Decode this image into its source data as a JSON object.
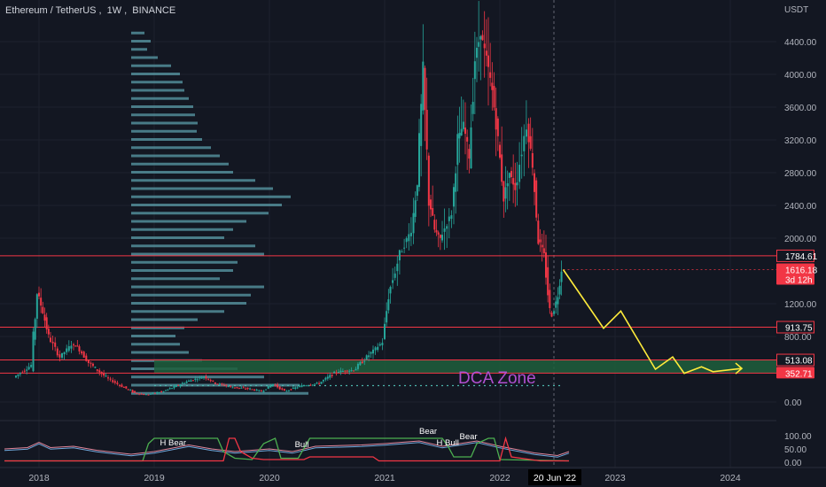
{
  "header": {
    "symbol": "Ethereum / TetherUS",
    "interval": "1W",
    "exchange": "BINANCE"
  },
  "price_axis": {
    "unit": "USDT",
    "ticks": [
      "4400.00",
      "4000.00",
      "3600.00",
      "3200.00",
      "2800.00",
      "2400.00",
      "2000.00",
      "1200.00",
      "800.00",
      "0.00"
    ],
    "tick_values": [
      4400,
      4000,
      3600,
      3200,
      2800,
      2400,
      2000,
      1200,
      800,
      0
    ],
    "badges": [
      {
        "label": "1784.61",
        "value": 1784.61,
        "color": "#f23645",
        "style": "outline"
      },
      {
        "label": "1616.18",
        "value": 1616.18,
        "color": "#f23645",
        "style": "filled",
        "sub": "3d 12h"
      },
      {
        "label": "913.75",
        "value": 913.75,
        "color": "#f23645",
        "style": "outline"
      },
      {
        "label": "513.08",
        "value": 513.08,
        "color": "#f23645",
        "style": "outline"
      },
      {
        "label": "352.71",
        "value": 352.71,
        "color": "#f23645",
        "style": "filled"
      }
    ]
  },
  "osc_axis": {
    "ticks": [
      "100.00",
      "50.00",
      "0.00"
    ],
    "tick_values": [
      100,
      50,
      0
    ]
  },
  "time_axis": {
    "labels": [
      "2018",
      "2019",
      "2020",
      "2021",
      "2022",
      "2023",
      "2024"
    ],
    "cursor_label": "20 Jun '22"
  },
  "annotations": {
    "zone_label": "DCA Zone",
    "osc_labels": [
      "H Bear",
      "Bull",
      "Bear",
      "H Bull",
      "Bear"
    ]
  },
  "colors": {
    "background": "#131722",
    "up": "#26a69a",
    "down": "#f23645",
    "level_line": "#f23645",
    "projection": "#ffeb3b",
    "zone_fill": "#1e5f3c",
    "zone_text": "#b04fd0",
    "volume_profile": "#5b9ea9",
    "osc_green": "#4caf50",
    "osc_red": "#f23645",
    "osc_pink": "#e0859a",
    "osc_blue": "#6fa8dc"
  },
  "chart_data": {
    "type": "candlestick",
    "series_name": "Ethereum / TetherUS, 1W, BINANCE",
    "x_unit": "year",
    "y_unit": "USDT",
    "ylim": [
      -150,
      4750
    ],
    "price_points": [
      [
        2017.8,
        300
      ],
      [
        2017.95,
        450
      ],
      [
        2018.0,
        1350
      ],
      [
        2018.05,
        1100
      ],
      [
        2018.1,
        800
      ],
      [
        2018.2,
        550
      ],
      [
        2018.3,
        700
      ],
      [
        2018.35,
        680
      ],
      [
        2018.45,
        480
      ],
      [
        2018.6,
        300
      ],
      [
        2018.7,
        220
      ],
      [
        2018.85,
        110
      ],
      [
        2018.95,
        90
      ],
      [
        2019.1,
        130
      ],
      [
        2019.3,
        250
      ],
      [
        2019.45,
        310
      ],
      [
        2019.55,
        230
      ],
      [
        2019.7,
        180
      ],
      [
        2019.85,
        160
      ],
      [
        2019.95,
        130
      ],
      [
        2020.05,
        220
      ],
      [
        2020.15,
        130
      ],
      [
        2020.3,
        200
      ],
      [
        2020.45,
        230
      ],
      [
        2020.6,
        370
      ],
      [
        2020.75,
        390
      ],
      [
        2020.9,
        600
      ],
      [
        2021.0,
        730
      ],
      [
        2021.05,
        1300
      ],
      [
        2021.15,
        1800
      ],
      [
        2021.25,
        2100
      ],
      [
        2021.3,
        2700
      ],
      [
        2021.35,
        4000
      ],
      [
        2021.4,
        2500
      ],
      [
        2021.45,
        2100
      ],
      [
        2021.5,
        2000
      ],
      [
        2021.6,
        2300
      ],
      [
        2021.65,
        3200
      ],
      [
        2021.7,
        3400
      ],
      [
        2021.75,
        3000
      ],
      [
        2021.8,
        4200
      ],
      [
        2021.85,
        4500
      ],
      [
        2021.9,
        4200
      ],
      [
        2021.95,
        3800
      ],
      [
        2022.0,
        3200
      ],
      [
        2022.05,
        2500
      ],
      [
        2022.1,
        2800
      ],
      [
        2022.15,
        2600
      ],
      [
        2022.25,
        3400
      ],
      [
        2022.3,
        2900
      ],
      [
        2022.35,
        2000
      ],
      [
        2022.4,
        1800
      ],
      [
        2022.45,
        1100
      ],
      [
        2022.47,
        1050
      ],
      [
        2022.52,
        1300
      ],
      [
        2022.55,
        1616.18
      ]
    ],
    "horizontal_levels": [
      1784.61,
      913.75,
      513.08,
      352.71
    ],
    "dotted_level": 200,
    "dca_zone": {
      "from": 352.71,
      "to": 513.08
    },
    "projection_path": [
      [
        2022.55,
        1616.18
      ],
      [
        2022.9,
        900
      ],
      [
        2023.05,
        1110
      ],
      [
        2023.35,
        400
      ],
      [
        2023.5,
        550
      ],
      [
        2023.6,
        350
      ],
      [
        2023.75,
        430
      ],
      [
        2023.85,
        370
      ],
      [
        2024.1,
        410
      ]
    ],
    "volume_profile": {
      "anchor_x": 2018.8,
      "bins": [
        [
          4500,
          0.15
        ],
        [
          4400,
          0.22
        ],
        [
          4300,
          0.18
        ],
        [
          4200,
          0.3
        ],
        [
          4100,
          0.45
        ],
        [
          4000,
          0.55
        ],
        [
          3900,
          0.58
        ],
        [
          3800,
          0.6
        ],
        [
          3700,
          0.65
        ],
        [
          3600,
          0.7
        ],
        [
          3500,
          0.72
        ],
        [
          3400,
          0.75
        ],
        [
          3300,
          0.74
        ],
        [
          3200,
          0.8
        ],
        [
          3100,
          0.9
        ],
        [
          3000,
          1.0
        ],
        [
          2900,
          1.1
        ],
        [
          2800,
          1.15
        ],
        [
          2700,
          1.4
        ],
        [
          2600,
          1.6
        ],
        [
          2500,
          1.8
        ],
        [
          2400,
          1.7
        ],
        [
          2300,
          1.55
        ],
        [
          2200,
          1.3
        ],
        [
          2100,
          1.15
        ],
        [
          2000,
          1.05
        ],
        [
          1900,
          1.4
        ],
        [
          1800,
          1.5
        ],
        [
          1700,
          1.2
        ],
        [
          1600,
          1.15
        ],
        [
          1500,
          1.0
        ],
        [
          1400,
          1.5
        ],
        [
          1300,
          1.35
        ],
        [
          1200,
          1.3
        ],
        [
          1100,
          1.05
        ],
        [
          1000,
          0.75
        ],
        [
          900,
          0.6
        ],
        [
          800,
          0.5
        ],
        [
          700,
          0.55
        ],
        [
          600,
          0.65
        ],
        [
          500,
          0.8
        ],
        [
          400,
          1.2
        ],
        [
          300,
          1.5
        ],
        [
          200,
          1.9
        ],
        [
          100,
          2.0
        ]
      ]
    },
    "oscillator": {
      "ylim": [
        0,
        110
      ],
      "green_line": [
        [
          2017.7,
          5
        ],
        [
          2018.9,
          5
        ],
        [
          2018.95,
          70
        ],
        [
          2019.0,
          90
        ],
        [
          2019.55,
          90
        ],
        [
          2019.6,
          40
        ],
        [
          2019.7,
          15
        ],
        [
          2019.85,
          10
        ],
        [
          2019.95,
          70
        ],
        [
          2020.05,
          90
        ],
        [
          2020.1,
          15
        ],
        [
          2020.25,
          15
        ],
        [
          2020.35,
          90
        ],
        [
          2021.5,
          90
        ],
        [
          2021.55,
          60
        ],
        [
          2021.6,
          20
        ],
        [
          2021.75,
          20
        ],
        [
          2021.8,
          70
        ],
        [
          2021.9,
          90
        ],
        [
          2021.95,
          90
        ],
        [
          2022.0,
          10
        ],
        [
          2022.6,
          5
        ]
      ],
      "red_line": [
        [
          2017.7,
          5
        ],
        [
          2019.6,
          5
        ],
        [
          2019.65,
          90
        ],
        [
          2019.7,
          90
        ],
        [
          2019.75,
          40
        ],
        [
          2019.85,
          15
        ],
        [
          2019.95,
          10
        ],
        [
          2020.3,
          10
        ],
        [
          2020.35,
          20
        ],
        [
          2020.9,
          20
        ],
        [
          2020.95,
          5
        ],
        [
          2022.0,
          5
        ],
        [
          2022.05,
          90
        ],
        [
          2022.1,
          20
        ],
        [
          2022.35,
          5
        ],
        [
          2022.6,
          5
        ]
      ],
      "rsi_line": [
        [
          2017.7,
          50
        ],
        [
          2017.9,
          55
        ],
        [
          2018.0,
          75
        ],
        [
          2018.1,
          55
        ],
        [
          2018.3,
          60
        ],
        [
          2018.5,
          45
        ],
        [
          2018.8,
          30
        ],
        [
          2019.0,
          40
        ],
        [
          2019.3,
          65
        ],
        [
          2019.5,
          50
        ],
        [
          2019.7,
          40
        ],
        [
          2020.0,
          50
        ],
        [
          2020.2,
          40
        ],
        [
          2020.4,
          60
        ],
        [
          2020.8,
          65
        ],
        [
          2021.0,
          70
        ],
        [
          2021.3,
          80
        ],
        [
          2021.5,
          60
        ],
        [
          2021.8,
          80
        ],
        [
          2022.0,
          60
        ],
        [
          2022.3,
          35
        ],
        [
          2022.5,
          25
        ],
        [
          2022.6,
          40
        ]
      ]
    }
  }
}
